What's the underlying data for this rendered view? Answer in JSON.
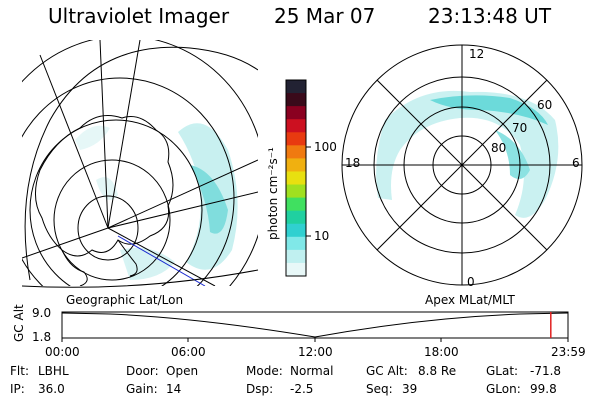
{
  "header": {
    "instrument": "Ultraviolet Imager",
    "date": "25 Mar 07",
    "time": "23:13:48 UT"
  },
  "panels": {
    "left_label": "Geographic Lat/Lon",
    "right_label": "Apex MLat/MLT"
  },
  "colorbar": {
    "unit_label": "photon cm⁻²s⁻¹",
    "ticks": [
      "100",
      "10"
    ],
    "colors": [
      "#222233",
      "#3a0a1a",
      "#8a0020",
      "#cc1020",
      "#e83a10",
      "#f07a10",
      "#f0b010",
      "#e8e010",
      "#a0e020",
      "#40e060",
      "#20d0a0",
      "#30d0d0",
      "#80e8e8",
      "#c0f0f0",
      "#e8f8f8"
    ]
  },
  "polar": {
    "mlt_labels": {
      "top": "12",
      "left": "18",
      "right": "6",
      "bottom": "0"
    },
    "lat_labels": [
      "60",
      "70",
      "80"
    ]
  },
  "timeline": {
    "axis_label": "GC Alt",
    "ymax": "9.0",
    "ymin": "1.8",
    "ticks": [
      "00:00",
      "06:00",
      "12:00",
      "18:00",
      "23:59"
    ],
    "current_fraction": 0.966
  },
  "info": {
    "flt_label": "Flt:",
    "flt_value": "LBHL",
    "ip_label": "IP:",
    "ip_value": "36.0",
    "door_label": "Door:",
    "door_value": "Open",
    "gain_label": "Gain:",
    "gain_value": "14",
    "mode_label": "Mode:",
    "mode_value": "Normal",
    "dsp_label": "Dsp:",
    "dsp_value": "-2.5",
    "gcalt_label": "GC Alt:",
    "gcalt_value": "8.8 Re",
    "seq_label": "Seq:",
    "seq_value": "39",
    "glat_label": "GLat:",
    "glat_value": "-71.8",
    "glon_label": "GLon:",
    "glon_value": "99.8"
  }
}
